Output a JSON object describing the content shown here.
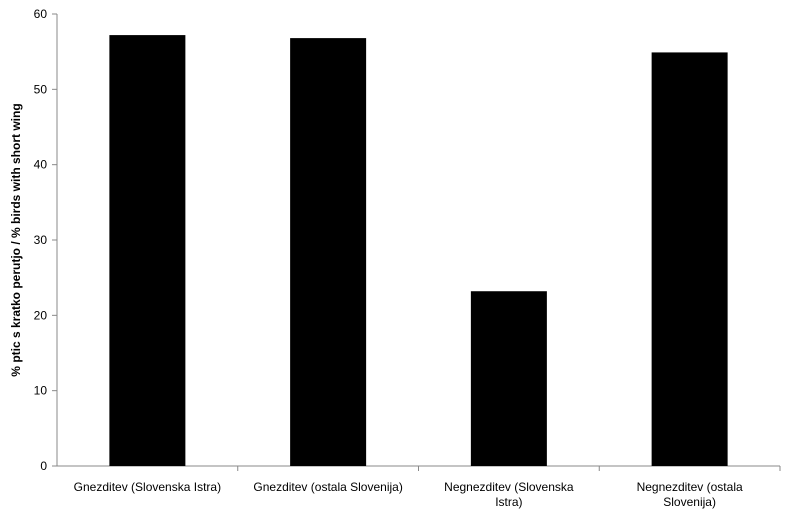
{
  "chart_data": {
    "type": "bar",
    "title": "",
    "xlabel": "",
    "ylabel": "% ptic s kratko perutjo / % birds with short wing",
    "categories": [
      [
        "Gnezditev (Slovenska Istra)"
      ],
      [
        "Gnezditev (ostala Slovenija)"
      ],
      [
        "Negnezditev (Slovenska",
        "Istra)"
      ],
      [
        "Negnezditev (ostala",
        "Slovenija)"
      ]
    ],
    "values": [
      57.2,
      56.8,
      23.2,
      54.9
    ],
    "ylim": [
      0,
      60
    ],
    "yticks": [
      0,
      10,
      20,
      30,
      40,
      50,
      60
    ],
    "bar_color": "#000000",
    "grid": false,
    "legend": "none"
  }
}
